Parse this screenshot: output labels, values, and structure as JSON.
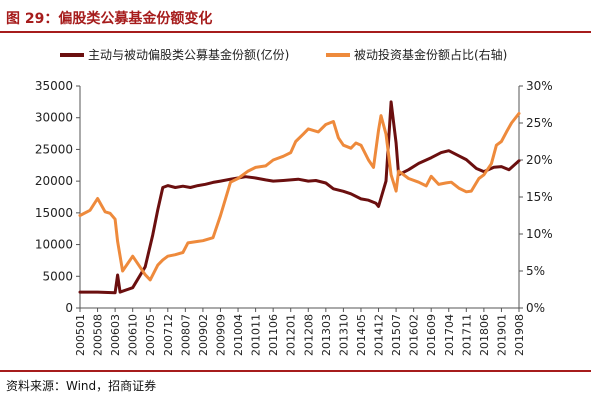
{
  "figure": {
    "title": "图 29：偏股类公募基金份额变化",
    "source": "资料来源：Wind，招商证券"
  },
  "colors": {
    "share": "#6b0f0f",
    "ratio": "#ee8a3c",
    "title": "#a61c1c"
  },
  "chart_data": {
    "type": "line",
    "title": "",
    "xlabel": "",
    "ylabel": "",
    "x_tick_labels": [
      "200501",
      "200508",
      "200603",
      "200610",
      "200705",
      "200712",
      "200807",
      "200902",
      "200909",
      "201004",
      "201011",
      "201106",
      "201201",
      "201208",
      "201303",
      "201310",
      "201405",
      "201412",
      "201507",
      "201602",
      "201609",
      "201704",
      "201711",
      "201806",
      "201901",
      "201908"
    ],
    "y_left": {
      "ylim": [
        0,
        35000
      ],
      "ticks": [
        "0",
        "5000",
        "10000",
        "15000",
        "20000",
        "25000",
        "30000",
        "35000"
      ]
    },
    "y_right": {
      "ylim": [
        0,
        30
      ],
      "ticks": [
        "0%",
        "5%",
        "10%",
        "15%",
        "20%",
        "25%",
        "30%"
      ]
    },
    "legend_position": "top",
    "grid": false,
    "series": [
      {
        "name": "主动与被动偏股类公募基金份额(亿份)",
        "axis": "left",
        "color": "#6b0f0f",
        "points": [
          [
            "200501",
            2500
          ],
          [
            "200508",
            2500
          ],
          [
            "200603",
            2400
          ],
          [
            "200604",
            5200
          ],
          [
            "200605",
            2500
          ],
          [
            "200610",
            3200
          ],
          [
            "200703",
            6500
          ],
          [
            "200706",
            11500
          ],
          [
            "200708",
            15500
          ],
          [
            "200710",
            19000
          ],
          [
            "200712",
            19300
          ],
          [
            "200803",
            19000
          ],
          [
            "200806",
            19200
          ],
          [
            "200809",
            19000
          ],
          [
            "200812",
            19300
          ],
          [
            "200903",
            19500
          ],
          [
            "200906",
            19800
          ],
          [
            "200909",
            20000
          ],
          [
            "201001",
            20300
          ],
          [
            "201004",
            20500
          ],
          [
            "201007",
            20700
          ],
          [
            "201011",
            20500
          ],
          [
            "201103",
            20200
          ],
          [
            "201106",
            20000
          ],
          [
            "201110",
            20100
          ],
          [
            "201201",
            20200
          ],
          [
            "201204",
            20300
          ],
          [
            "201208",
            20000
          ],
          [
            "201211",
            20100
          ],
          [
            "201303",
            19700
          ],
          [
            "201306",
            18800
          ],
          [
            "201310",
            18400
          ],
          [
            "201401",
            18000
          ],
          [
            "201405",
            17200
          ],
          [
            "201408",
            17000
          ],
          [
            "201411",
            16500
          ],
          [
            "201412",
            16000
          ],
          [
            "201503",
            20000
          ],
          [
            "201505",
            32500
          ],
          [
            "201507",
            26000
          ],
          [
            "201508",
            21000
          ],
          [
            "201512",
            21800
          ],
          [
            "201604",
            22800
          ],
          [
            "201609",
            23700
          ],
          [
            "201701",
            24500
          ],
          [
            "201704",
            24800
          ],
          [
            "201708",
            24000
          ],
          [
            "201711",
            23400
          ],
          [
            "201803",
            22000
          ],
          [
            "201806",
            21500
          ],
          [
            "201810",
            22200
          ],
          [
            "201901",
            22300
          ],
          [
            "201904",
            21800
          ],
          [
            "201908",
            23200
          ]
        ]
      },
      {
        "name": "被动投资基金份额占比(右轴)",
        "axis": "right",
        "color": "#ee8a3c",
        "points": [
          [
            "200501",
            12.5
          ],
          [
            "200505",
            13.2
          ],
          [
            "200508",
            14.8
          ],
          [
            "200511",
            13.0
          ],
          [
            "200601",
            12.8
          ],
          [
            "200603",
            12.0
          ],
          [
            "200604",
            9.0
          ],
          [
            "200606",
            5.0
          ],
          [
            "200610",
            7.0
          ],
          [
            "200703",
            4.5
          ],
          [
            "200705",
            3.8
          ],
          [
            "200708",
            5.8
          ],
          [
            "200710",
            6.5
          ],
          [
            "200712",
            7.0
          ],
          [
            "200803",
            7.2
          ],
          [
            "200806",
            7.5
          ],
          [
            "200808",
            8.8
          ],
          [
            "200812",
            9.0
          ],
          [
            "200902",
            9.1
          ],
          [
            "200906",
            9.5
          ],
          [
            "200909",
            12.5
          ],
          [
            "201001",
            17.0
          ],
          [
            "201004",
            17.5
          ],
          [
            "201008",
            18.5
          ],
          [
            "201011",
            19.0
          ],
          [
            "201103",
            19.2
          ],
          [
            "201106",
            20.0
          ],
          [
            "201110",
            20.5
          ],
          [
            "201201",
            21.0
          ],
          [
            "201203",
            22.5
          ],
          [
            "201206",
            23.5
          ],
          [
            "201208",
            24.2
          ],
          [
            "201212",
            23.8
          ],
          [
            "201303",
            24.8
          ],
          [
            "201306",
            25.2
          ],
          [
            "201308",
            23.0
          ],
          [
            "201310",
            22.0
          ],
          [
            "201401",
            21.6
          ],
          [
            "201403",
            22.3
          ],
          [
            "201405",
            22.0
          ],
          [
            "201408",
            20.0
          ],
          [
            "201410",
            19.0
          ],
          [
            "201412",
            24.0
          ],
          [
            "201501",
            26.0
          ],
          [
            "201503",
            23.5
          ],
          [
            "201505",
            18.0
          ],
          [
            "201507",
            15.8
          ],
          [
            "201508",
            18.5
          ],
          [
            "201512",
            17.5
          ],
          [
            "201604",
            17.0
          ],
          [
            "201607",
            16.5
          ],
          [
            "201609",
            17.8
          ],
          [
            "201612",
            16.7
          ],
          [
            "201703",
            16.9
          ],
          [
            "201705",
            17.0
          ],
          [
            "201708",
            16.2
          ],
          [
            "201711",
            15.7
          ],
          [
            "201801",
            15.8
          ],
          [
            "201804",
            17.5
          ],
          [
            "201806",
            18.0
          ],
          [
            "201809",
            19.5
          ],
          [
            "201811",
            22.0
          ],
          [
            "201901",
            22.5
          ],
          [
            "201903",
            23.8
          ],
          [
            "201905",
            25.0
          ],
          [
            "201908",
            26.3
          ]
        ]
      }
    ]
  }
}
